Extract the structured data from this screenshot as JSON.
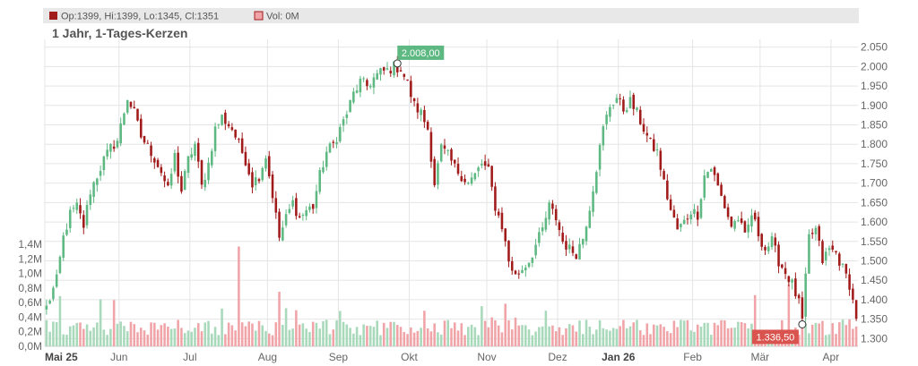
{
  "header": {
    "ohlc_label": "Op:1399, Hi:1399, Lo:1345, Cl:1351",
    "vol_label": "Vol: 0M",
    "subtitle": "1 Jahr, 1-Tages-Kerzen"
  },
  "colors": {
    "up": "#5eb882",
    "down": "#a11b1b",
    "vol_up": "#a9d9bb",
    "vol_down": "#f0a4a8",
    "grid": "#e5e5e5",
    "axis_text": "#666666",
    "header_bg": "#e8e8e8"
  },
  "chart_data": {
    "type": "candlestick",
    "price_axis": {
      "min": 1280,
      "max": 2070,
      "ticks": [
        2050,
        2000,
        1950,
        1900,
        1850,
        1800,
        1750,
        1700,
        1650,
        1600,
        1550,
        1500,
        1450,
        1400,
        1350,
        1300
      ],
      "tick_labels": [
        "2.050",
        "2.000",
        "1.950",
        "1.900",
        "1.850",
        "1.800",
        "1.750",
        "1.700",
        "1.650",
        "1.600",
        "1.550",
        "1.500",
        "1.450",
        "1.400",
        "1.350",
        "1.300"
      ]
    },
    "volume_axis": {
      "min": 0,
      "max": 1.4,
      "unit": "M",
      "ticks": [
        1.4,
        1.2,
        1.0,
        0.8,
        0.6,
        0.4,
        0.2,
        0.0
      ],
      "tick_labels": [
        "1,4M",
        "1,2M",
        "1,0M",
        "0,8M",
        "0,6M",
        "0,4M",
        "0,2M",
        "0,0M"
      ]
    },
    "x_axis": {
      "labels": [
        {
          "text": "Mai 25",
          "index": 0,
          "bold": true
        },
        {
          "text": "Jun",
          "index": 22,
          "bold": false
        },
        {
          "text": "Jul",
          "index": 43,
          "bold": false
        },
        {
          "text": "Aug",
          "index": 66,
          "bold": false
        },
        {
          "text": "Sep",
          "index": 87,
          "bold": false
        },
        {
          "text": "Okt",
          "index": 108,
          "bold": false
        },
        {
          "text": "Nov",
          "index": 131,
          "bold": false
        },
        {
          "text": "Dez",
          "index": 152,
          "bold": false
        },
        {
          "text": "Jan 26",
          "index": 170,
          "bold": true
        },
        {
          "text": "Feb",
          "index": 192,
          "bold": false
        },
        {
          "text": "Mär",
          "index": 212,
          "bold": false
        },
        {
          "text": "Apr",
          "index": 233,
          "bold": false
        }
      ]
    },
    "anchors": [
      [
        0,
        1380
      ],
      [
        3,
        1450
      ],
      [
        5,
        1560
      ],
      [
        7,
        1620
      ],
      [
        9,
        1640
      ],
      [
        11,
        1590
      ],
      [
        13,
        1680
      ],
      [
        15,
        1720
      ],
      [
        17,
        1760
      ],
      [
        19,
        1790
      ],
      [
        21,
        1810
      ],
      [
        24,
        1920
      ],
      [
        26,
        1880
      ],
      [
        28,
        1820
      ],
      [
        31,
        1780
      ],
      [
        34,
        1730
      ],
      [
        36,
        1680
      ],
      [
        38,
        1770
      ],
      [
        40,
        1680
      ],
      [
        42,
        1760
      ],
      [
        44,
        1800
      ],
      [
        46,
        1690
      ],
      [
        48,
        1750
      ],
      [
        50,
        1840
      ],
      [
        52,
        1870
      ],
      [
        55,
        1840
      ],
      [
        57,
        1800
      ],
      [
        59,
        1760
      ],
      [
        61,
        1700
      ],
      [
        63,
        1720
      ],
      [
        65,
        1770
      ],
      [
        67,
        1670
      ],
      [
        69,
        1560
      ],
      [
        71,
        1610
      ],
      [
        73,
        1650
      ],
      [
        75,
        1610
      ],
      [
        77,
        1630
      ],
      [
        79,
        1640
      ],
      [
        81,
        1720
      ],
      [
        83,
        1780
      ],
      [
        85,
        1800
      ],
      [
        87,
        1840
      ],
      [
        89,
        1880
      ],
      [
        91,
        1930
      ],
      [
        93,
        1960
      ],
      [
        95,
        1950
      ],
      [
        97,
        1970
      ],
      [
        99,
        1985
      ],
      [
        101,
        1990
      ],
      [
        103,
        2000
      ],
      [
        105,
        1995
      ],
      [
        107,
        1955
      ],
      [
        109,
        1900
      ],
      [
        111,
        1880
      ],
      [
        113,
        1840
      ],
      [
        115,
        1700
      ],
      [
        117,
        1790
      ],
      [
        119,
        1770
      ],
      [
        121,
        1740
      ],
      [
        123,
        1720
      ],
      [
        125,
        1700
      ],
      [
        127,
        1720
      ],
      [
        129,
        1750
      ],
      [
        131,
        1730
      ],
      [
        133,
        1640
      ],
      [
        135,
        1590
      ],
      [
        137,
        1500
      ],
      [
        139,
        1460
      ],
      [
        141,
        1480
      ],
      [
        143,
        1500
      ],
      [
        145,
        1540
      ],
      [
        147,
        1580
      ],
      [
        149,
        1640
      ],
      [
        151,
        1610
      ],
      [
        153,
        1550
      ],
      [
        155,
        1530
      ],
      [
        157,
        1520
      ],
      [
        159,
        1560
      ],
      [
        161,
        1640
      ],
      [
        163,
        1740
      ],
      [
        165,
        1840
      ],
      [
        167,
        1900
      ],
      [
        169,
        1920
      ],
      [
        171,
        1890
      ],
      [
        173,
        1910
      ],
      [
        175,
        1880
      ],
      [
        177,
        1840
      ],
      [
        179,
        1800
      ],
      [
        181,
        1780
      ],
      [
        183,
        1700
      ],
      [
        185,
        1630
      ],
      [
        187,
        1580
      ],
      [
        189,
        1600
      ],
      [
        191,
        1630
      ],
      [
        193,
        1620
      ],
      [
        195,
        1720
      ],
      [
        197,
        1740
      ],
      [
        199,
        1690
      ],
      [
        201,
        1640
      ],
      [
        203,
        1590
      ],
      [
        205,
        1610
      ],
      [
        207,
        1560
      ],
      [
        209,
        1620
      ],
      [
        211,
        1570
      ],
      [
        213,
        1530
      ],
      [
        215,
        1550
      ],
      [
        217,
        1500
      ],
      [
        219,
        1470
      ],
      [
        221,
        1440
      ],
      [
        223,
        1390
      ],
      [
        224,
        1345
      ],
      [
        226,
        1560
      ],
      [
        228,
        1580
      ],
      [
        230,
        1500
      ],
      [
        232,
        1530
      ],
      [
        234,
        1520
      ],
      [
        236,
        1480
      ],
      [
        238,
        1440
      ],
      [
        240,
        1351
      ]
    ],
    "candle_count": 241,
    "annotations": [
      {
        "label": "2.008,00",
        "index": 104,
        "value": 2008,
        "color": "#5eb882",
        "position": "above"
      },
      {
        "label": "1.336,50",
        "index": 224,
        "value": 1336.5,
        "color": "#d9534f",
        "position": "left"
      }
    ],
    "last_candle": {
      "open": 1399,
      "high": 1399,
      "low": 1345,
      "close": 1351,
      "volume_m": 0
    }
  }
}
